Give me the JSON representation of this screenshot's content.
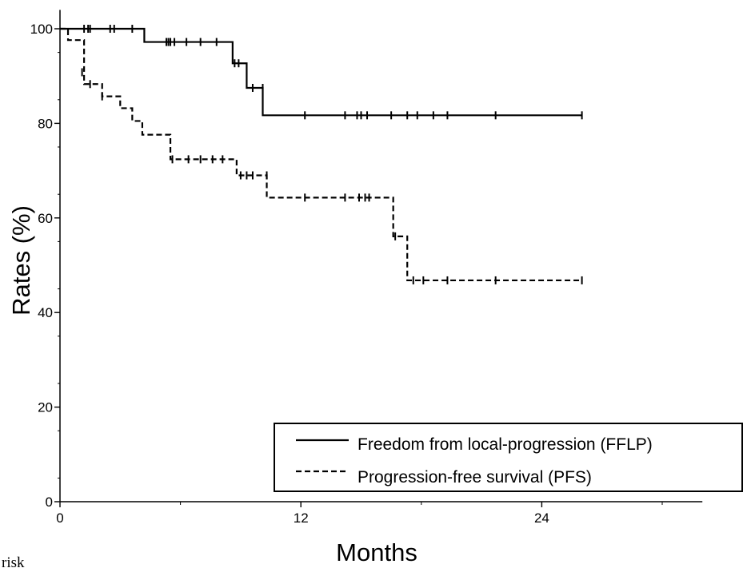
{
  "chart_data": {
    "type": "line",
    "title": "",
    "xlabel": "Months",
    "ylabel": "Rates (%)",
    "xlim": [
      0,
      32
    ],
    "ylim": [
      0,
      104
    ],
    "x_ticks": [
      0,
      12,
      24
    ],
    "y_ticks": [
      0,
      20,
      40,
      60,
      80,
      100
    ],
    "legend_position": "bottom-right",
    "series": [
      {
        "name": "Freedom from local-progression (FFLP)",
        "line_style": "solid",
        "color": "#000000",
        "step_x": [
          0,
          4.2,
          8.6,
          9.3,
          10.1,
          26
        ],
        "step_y": [
          100,
          97.2,
          92.7,
          87.5,
          81.7,
          81.7
        ],
        "censor_x": [
          1.2,
          1.4,
          1.5,
          2.5,
          2.7,
          3.6,
          5.3,
          5.4,
          5.5,
          5.7,
          6.3,
          7.0,
          7.8,
          8.7,
          8.9,
          9.6,
          10.1,
          12.2,
          14.2,
          14.8,
          15.0,
          15.3,
          16.5,
          17.3,
          17.8,
          18.6,
          19.3,
          21.7,
          26
        ],
        "censor_y": [
          100,
          100,
          100,
          100,
          100,
          100,
          97.2,
          97.2,
          97.2,
          97.2,
          97.2,
          97.2,
          97.2,
          92.7,
          92.7,
          87.5,
          87.5,
          81.7,
          81.7,
          81.7,
          81.7,
          81.7,
          81.7,
          81.7,
          81.7,
          81.7,
          81.7,
          81.7,
          81.7
        ]
      },
      {
        "name": "Progression-free survival (PFS)",
        "line_style": "dashed",
        "color": "#000000",
        "step_x": [
          0,
          0.4,
          1.2,
          2.1,
          3.0,
          3.6,
          4.1,
          5.5,
          8.8,
          10.3,
          16.6,
          17.3,
          26
        ],
        "step_y": [
          100,
          97.6,
          88.3,
          85.7,
          83.2,
          80.5,
          77.6,
          72.4,
          69.0,
          64.3,
          56.1,
          46.8,
          46.8
        ],
        "censor_x": [
          1.1,
          1.5,
          2.1,
          5.6,
          6.4,
          7.0,
          7.6,
          8.1,
          9.0,
          9.3,
          9.6,
          10.3,
          12.2,
          14.2,
          14.9,
          15.2,
          15.4,
          16.7,
          17.6,
          18.1,
          19.3,
          21.7,
          26
        ],
        "censor_y": [
          90.8,
          88.3,
          85.7,
          72.4,
          72.4,
          72.4,
          72.4,
          72.4,
          69.0,
          69.0,
          69.0,
          69.0,
          64.3,
          64.3,
          64.3,
          64.3,
          64.3,
          56.1,
          46.8,
          46.8,
          46.8,
          46.8,
          46.8
        ]
      }
    ],
    "cutoff_text": "risk"
  }
}
